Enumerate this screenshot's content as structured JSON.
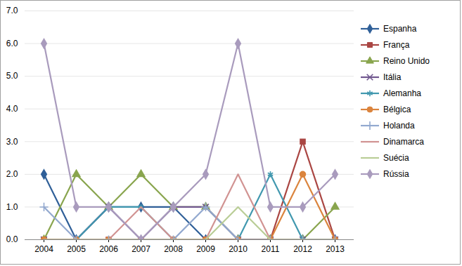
{
  "chart_data": {
    "type": "line",
    "categories": [
      "2004",
      "2005",
      "2006",
      "2007",
      "2008",
      "2009",
      "2010",
      "2011",
      "2012",
      "2013"
    ],
    "series": [
      {
        "name": "Espanha",
        "color": "#2f5f98",
        "marker": "diamond",
        "values": [
          2,
          0,
          1,
          1,
          1,
          0,
          0,
          0,
          0,
          0
        ]
      },
      {
        "name": "França",
        "color": "#aa4643",
        "marker": "square",
        "values": [
          0,
          0,
          0,
          0,
          0,
          0,
          0,
          0,
          3,
          0
        ]
      },
      {
        "name": "Reino Unido",
        "color": "#89a54e",
        "marker": "triangle",
        "values": [
          0,
          2,
          1,
          2,
          1,
          1,
          0,
          0,
          0,
          1
        ]
      },
      {
        "name": "Itália",
        "color": "#71588f",
        "marker": "times",
        "values": [
          0,
          0,
          1,
          0,
          1,
          1,
          0,
          0,
          0,
          0
        ]
      },
      {
        "name": "Alemanha",
        "color": "#4198af",
        "marker": "asterisk",
        "values": [
          0,
          0,
          1,
          1,
          0,
          0,
          0,
          2,
          0,
          0
        ]
      },
      {
        "name": "Bélgica",
        "color": "#db843d",
        "marker": "circle",
        "values": [
          0,
          0,
          0,
          0,
          0,
          0,
          0,
          0,
          2,
          0
        ]
      },
      {
        "name": "Holanda",
        "color": "#93a9cf",
        "marker": "plus",
        "values": [
          1,
          0,
          0,
          0,
          0,
          1,
          0,
          0,
          0,
          0
        ]
      },
      {
        "name": "Dinamarca",
        "color": "#d19392",
        "marker": "none",
        "values": [
          0,
          0,
          0,
          1,
          0,
          0,
          2,
          0,
          0,
          0
        ]
      },
      {
        "name": "Suécia",
        "color": "#b9cd96",
        "marker": "none",
        "values": [
          0,
          0,
          0,
          0,
          0,
          0,
          1,
          0,
          0,
          0
        ]
      },
      {
        "name": "Rússia",
        "color": "#a99bbd",
        "marker": "diamond",
        "values": [
          6,
          1,
          1,
          0,
          1,
          2,
          6,
          1,
          1,
          2
        ]
      }
    ],
    "ylim": [
      0,
      7
    ],
    "yticks": [
      0,
      1,
      2,
      3,
      4,
      5,
      6,
      7
    ],
    "grid": true,
    "legend": "right"
  }
}
